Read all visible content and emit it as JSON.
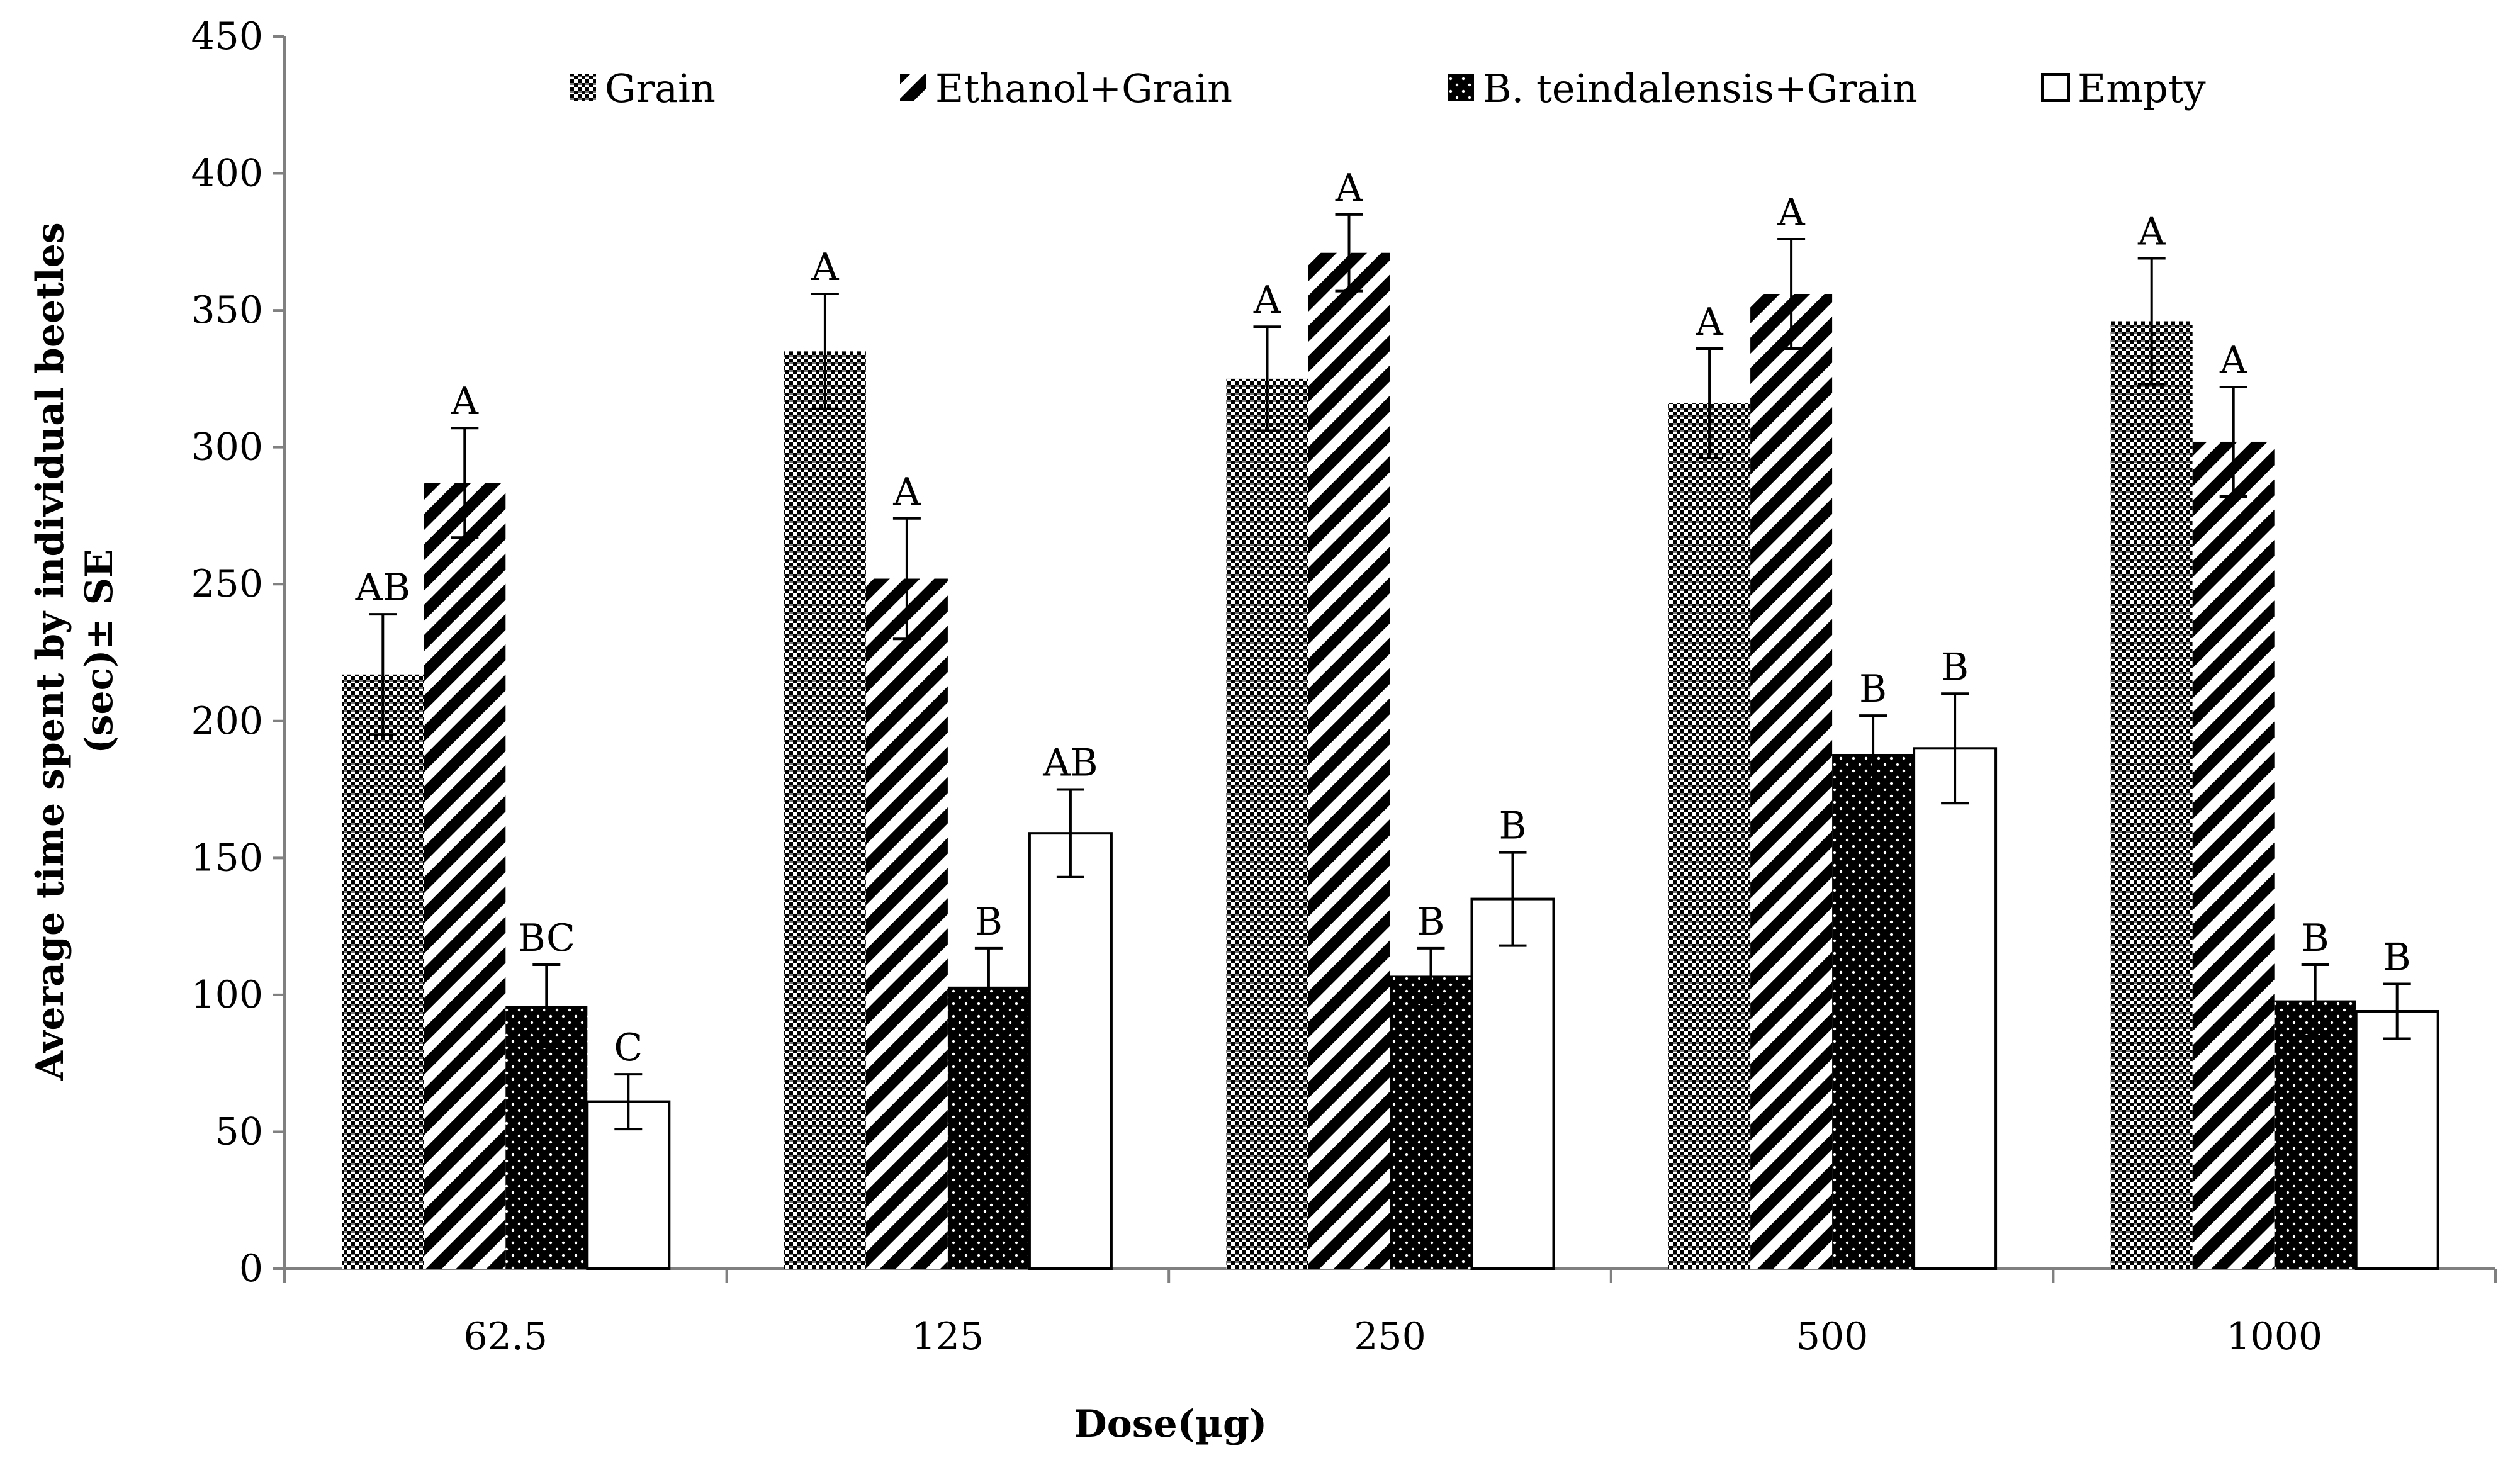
{
  "chart_data": {
    "type": "bar",
    "xlabel": "Dose(µg)",
    "ylabel_line1": "Average time spent by individual beetles",
    "ylabel_line2": "(sec)± SE",
    "ylim": [
      0,
      450
    ],
    "yticks": [
      0,
      50,
      100,
      150,
      200,
      250,
      300,
      350,
      400,
      450
    ],
    "categories": [
      "62.5",
      "125",
      "250",
      "500",
      "1000"
    ],
    "legend_position": "top",
    "grid": false,
    "series": [
      {
        "name": "Grain",
        "pattern": "checker",
        "values": [
          217,
          335,
          325,
          316,
          346
        ],
        "errors": [
          22,
          21,
          19,
          20,
          23
        ],
        "sig_labels": [
          "AB",
          "A",
          "A",
          "A",
          "A"
        ]
      },
      {
        "name": "Ethanol+Grain",
        "pattern": "diagonal-stripes",
        "values": [
          287,
          252,
          371,
          356,
          302
        ],
        "errors": [
          20,
          22,
          14,
          20,
          20
        ],
        "sig_labels": [
          "A",
          "A",
          "A",
          "A",
          "A"
        ]
      },
      {
        "name": "B. teindalensis+Grain",
        "pattern": "black-dots",
        "values": [
          96,
          103,
          107,
          188,
          98
        ],
        "errors": [
          15,
          14,
          10,
          14,
          13
        ],
        "sig_labels": [
          "BC",
          "B",
          "B",
          "B",
          "B"
        ]
      },
      {
        "name": "Empty",
        "pattern": "empty",
        "values": [
          61,
          159,
          135,
          190,
          94
        ],
        "errors": [
          10,
          16,
          17,
          20,
          10
        ],
        "sig_labels": [
          "C",
          "AB",
          "B",
          "B",
          "B"
        ]
      }
    ]
  }
}
